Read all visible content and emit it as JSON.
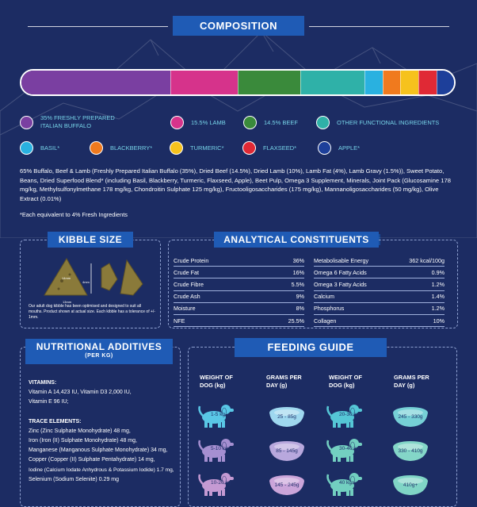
{
  "composition": {
    "title": "COMPOSITION",
    "segments": [
      {
        "color": "#7a3fa1",
        "pct": 35
      },
      {
        "color": "#d6338b",
        "pct": 15.5
      },
      {
        "color": "#3a8a3b",
        "pct": 14.5
      },
      {
        "color": "#2fb1a8",
        "pct": 15
      },
      {
        "color": "#29b1e0",
        "pct": 4
      },
      {
        "color": "#f07a1e",
        "pct": 4
      },
      {
        "color": "#f6c21d",
        "pct": 4
      },
      {
        "color": "#e02935",
        "pct": 4
      },
      {
        "color": "#1d3f9a",
        "pct": 4
      }
    ],
    "legend": [
      {
        "label": "35% FRESHLY PREPARED ITALIAN BUFFALO",
        "color": "#7a3fa1"
      },
      {
        "label": "15.5% LAMB",
        "color": "#d6338b"
      },
      {
        "label": "14.5% BEEF",
        "color": "#3a8a3b"
      },
      {
        "label": "OTHER FUNCTIONAL INGREDIENTS",
        "color": "#2fb1a8"
      },
      {
        "label": "BASIL*",
        "color": "#29b1e0"
      },
      {
        "label": "BLACKBERRY*",
        "color": "#f07a1e"
      },
      {
        "label": "TURMERIC*",
        "color": "#f6c21d"
      },
      {
        "label": "FLAXSEED*",
        "color": "#e02935"
      },
      {
        "label": "APPLE*",
        "color": "#1d3f9a"
      }
    ],
    "ingredients": "65% Buffalo, Beef & Lamb (Freshly Prepared Italian Buffalo (35%), Dried Beef (14.5%), Dried Lamb (10%), Lamb Fat (4%), Lamb Gravy (1.5%)), Sweet Potato, Beans, Dried Superfood Blend* (including Basil, Blackberry, Turmeric, Flaxseed, Apple), Beet Pulp, Omega 3 Supplement, Minerals, Joint Pack (Glucosamine 178 mg/kg, Methylsulfonylmethane 178 mg/kg, Chondroitin Sulphate 125 mg/kg), Fructooligosaccharides (175 mg/kg), Mannanoligosaccharides (50 mg/kg), Olive Extract (0.01%)",
    "note": "*Each equivalent to 4% Fresh Ingredients"
  },
  "kibble": {
    "title": "KIBBLE SIZE",
    "dim_side": "14mm",
    "dim_bottom": "13mm",
    "dim_height": "4mm",
    "text": "Our adult dog kibble has been optimised and designed to suit all mouths. Product shown at actual size. Each kibble has a tolerance of +/- 1mm."
  },
  "analytical": {
    "title": "ANALYTICAL CONSTITUENTS",
    "left": [
      {
        "name": "Crude Protein",
        "value": "36%"
      },
      {
        "name": "Crude Fat",
        "value": "16%"
      },
      {
        "name": "Crude Fibre",
        "value": "5.5%"
      },
      {
        "name": "Crude Ash",
        "value": "9%"
      },
      {
        "name": "Moisture",
        "value": "8%"
      },
      {
        "name": "NFE",
        "value": "25.5%"
      }
    ],
    "right": [
      {
        "name": "Metabolisable Energy",
        "value": "362 kcal/100g"
      },
      {
        "name": "Omega 6 Fatty Acids",
        "value": "0.9%"
      },
      {
        "name": "Omega 3 Fatty Acids",
        "value": "1.2%"
      },
      {
        "name": "Calcium",
        "value": "1.4%"
      },
      {
        "name": "Phosphorus",
        "value": "1.2%"
      },
      {
        "name": "Collagen",
        "value": "10%"
      }
    ]
  },
  "nutritional": {
    "title": "NUTRITIONAL ADDITIVES",
    "subtitle": "(PER KG)",
    "vitamins_heading": "VITAMINS:",
    "vitamins": [
      "Vitamin A 14,423 IU, Vitamin D3 2,000 IU,",
      "Vitamin E 96 IU;"
    ],
    "trace_heading": "TRACE ELEMENTS:",
    "trace": [
      "Zinc (Zinc Sulphate Monohydrate) 48 mg,",
      "Iron (Iron (II) Sulphate Monohydrate) 48 mg,",
      "Manganese (Manganous Sulphate Monohydrate) 34 mg,",
      "Copper (Copper (II) Sulphate Pentahydrate) 14 mg,",
      "Iodine (Calcium Iodate Anhydrous & Potassium Iodide) 1.7 mg,",
      "Selenium (Sodium Selenite) 0.29 mg"
    ]
  },
  "feeding": {
    "title": "FEEDING GUIDE",
    "head_weight": "WEIGHT OF DOG (kg)",
    "head_grams": "GRAMS PER DAY (g)",
    "left": [
      {
        "weight": "1-5 kg",
        "grams": "25 - 85g",
        "dogcolor": "#59c7e6",
        "bowlcolor": "#9fd8ef"
      },
      {
        "weight": "5-10 kg",
        "grams": "85 - 145g",
        "dogcolor": "#a58fd1",
        "bowlcolor": "#b8a8dd"
      },
      {
        "weight": "10-20 kg",
        "grams": "145 - 245g",
        "dogcolor": "#c59ad3",
        "bowlcolor": "#cba5da"
      }
    ],
    "right": [
      {
        "weight": "20-30 kg",
        "grams": "245 - 330g",
        "dogcolor": "#55c7d6",
        "bowlcolor": "#76d0d6"
      },
      {
        "weight": "30-40 kg",
        "grams": "330 - 410g",
        "dogcolor": "#73cfc1",
        "bowlcolor": "#84d6c8"
      },
      {
        "weight": "40 kg+",
        "grams": "410g+",
        "dogcolor": "#72cfc0",
        "bowlcolor": "#80d5c6"
      }
    ]
  }
}
